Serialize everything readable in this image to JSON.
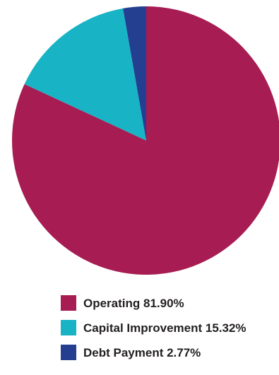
{
  "chart_data": {
    "type": "pie",
    "title": "",
    "slices": [
      {
        "label": "Operating",
        "percent_label": "81.90%",
        "value": 81.9,
        "color": "#a71c52"
      },
      {
        "label": "Capital Improvement",
        "percent_label": "15.32%",
        "value": 15.32,
        "color": "#18b3c5"
      },
      {
        "label": "Debt Payment",
        "percent_label": "2.77%",
        "value": 2.77,
        "color": "#243e90"
      }
    ],
    "start_angle_deg": 0,
    "direction": "clockwise",
    "legend_position": "bottom"
  }
}
